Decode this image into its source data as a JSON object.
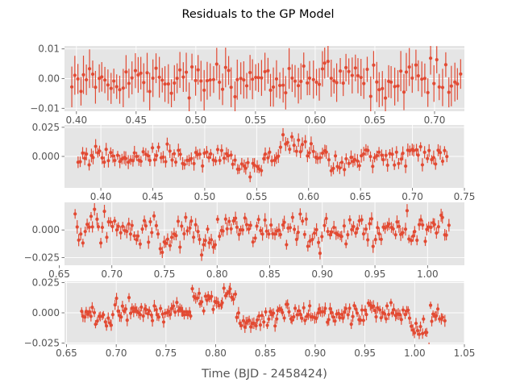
{
  "figure": {
    "title": "Residuals to the GP Model",
    "xlabel": "Time (BJD - 2458424)"
  },
  "colors": {
    "marker": "#E24A33",
    "axes_bg": "#E5E5E5",
    "grid": "#FFFFFF",
    "tick_text": "#555555"
  },
  "chart_data": [
    {
      "type": "scatter",
      "errorbars": true,
      "xlim": [
        0.39,
        0.725
      ],
      "ylim": [
        -0.011,
        0.011
      ],
      "xticks": [
        0.4,
        0.45,
        0.5,
        0.55,
        0.6,
        0.65,
        0.7
      ],
      "xtick_labels": [
        "0.40",
        "0.45",
        "0.50",
        "0.55",
        "0.60",
        "0.65",
        "0.70"
      ],
      "yticks": [
        -0.01,
        0.0,
        0.01
      ],
      "ytick_labels": [
        "−0.01",
        "0.00",
        "0.01"
      ],
      "x_start": 0.396,
      "x_end": 0.722,
      "n_points": 130,
      "y_scatter": 0.0027,
      "yerr": 0.0055,
      "segments": [],
      "grid": true
    },
    {
      "type": "scatter",
      "errorbars": true,
      "xlim": [
        0.365,
        0.75
      ],
      "ylim": [
        -0.027,
        0.027
      ],
      "xticks": [
        0.4,
        0.45,
        0.5,
        0.55,
        0.6,
        0.65,
        0.7,
        0.75
      ],
      "xtick_labels": [
        "0.40",
        "0.45",
        "0.50",
        "0.55",
        "0.60",
        "0.65",
        "0.70",
        "0.75"
      ],
      "yticks": [
        0.0,
        0.025
      ],
      "ytick_labels": [
        "0.000",
        "0.025"
      ],
      "x_start": 0.378,
      "x_end": 0.733,
      "n_points": 170,
      "y_scatter": 0.004,
      "yerr": 0.005,
      "segments": [
        {
          "x0": 0.5,
          "x1": 0.555,
          "y0": 0.0,
          "y1": -0.01
        },
        {
          "x0": 0.575,
          "x1": 0.605,
          "y0": 0.012,
          "y1": 0.008
        },
        {
          "x0": 0.62,
          "x1": 0.65,
          "y0": -0.008,
          "y1": -0.006
        }
      ],
      "grid": true
    },
    {
      "type": "scatter",
      "errorbars": true,
      "xlim": [
        0.655,
        1.035
      ],
      "ylim": [
        -0.032,
        0.025
      ],
      "xticks": [
        0.65,
        0.7,
        0.75,
        0.8,
        0.85,
        0.9,
        0.95,
        1.0
      ],
      "xtick_labels": [
        "0.65",
        "0.70",
        "0.75",
        "0.80",
        "0.85",
        "0.90",
        "0.95",
        "1.00"
      ],
      "yticks": [
        -0.025,
        0.0
      ],
      "ytick_labels": [
        "−0.025",
        "0.000"
      ],
      "x_start": 0.665,
      "x_end": 1.02,
      "n_points": 190,
      "y_scatter": 0.007,
      "yerr": 0.005,
      "segments": [
        {
          "x0": 0.745,
          "x1": 0.765,
          "y0": -0.012,
          "y1": -0.004
        },
        {
          "x0": 0.785,
          "x1": 0.8,
          "y0": -0.012,
          "y1": -0.006
        },
        {
          "x0": 0.885,
          "x1": 0.9,
          "y0": -0.008,
          "y1": -0.012
        }
      ],
      "grid": true
    },
    {
      "type": "scatter",
      "errorbars": true,
      "xlim": [
        0.648,
        1.05
      ],
      "ylim": [
        -0.026,
        0.026
      ],
      "xticks": [
        0.65,
        0.7,
        0.75,
        0.8,
        0.85,
        0.9,
        0.95,
        1.0,
        1.05
      ],
      "xtick_labels": [
        "0.65",
        "0.70",
        "0.75",
        "0.80",
        "0.85",
        "0.90",
        "0.95",
        "1.00",
        "1.05"
      ],
      "yticks": [
        -0.025,
        0.0,
        0.025
      ],
      "ytick_labels": [
        "−0.025",
        "0.000",
        "0.025"
      ],
      "x_start": 0.665,
      "x_end": 1.03,
      "n_points": 230,
      "y_scatter": 0.0045,
      "yerr": 0.004,
      "segments": [
        {
          "x0": 0.68,
          "x1": 0.695,
          "y0": -0.006,
          "y1": -0.008
        },
        {
          "x0": 0.775,
          "x1": 0.82,
          "y0": 0.011,
          "y1": 0.011
        },
        {
          "x0": 0.82,
          "x1": 0.86,
          "y0": -0.006,
          "y1": -0.004
        },
        {
          "x0": 0.995,
          "x1": 1.015,
          "y0": -0.012,
          "y1": -0.016
        }
      ],
      "grid": true
    }
  ]
}
